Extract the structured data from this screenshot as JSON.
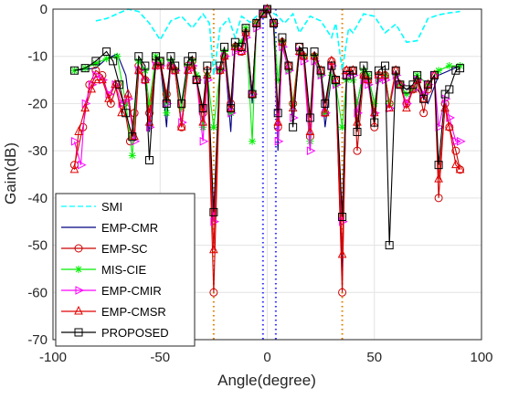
{
  "chart_data": {
    "type": "line",
    "xlabel": "Angle(degree)",
    "ylabel": "Gain(dB)",
    "xlim": [
      -100,
      100
    ],
    "ylim": [
      -70,
      0
    ],
    "xticks": [
      -100,
      -50,
      0,
      50,
      100
    ],
    "yticks": [
      0,
      -10,
      -20,
      -30,
      -40,
      -50,
      -60,
      -70
    ],
    "grid": true,
    "legend_position": "bottom-left",
    "vertical_lines": [
      -25,
      -2,
      4,
      35
    ],
    "series": [
      {
        "name": "SMI",
        "color": "#00ffff",
        "style": "dashed",
        "marker": "none",
        "x": [
          -80,
          -75,
          -70,
          -65,
          -60,
          -55,
          -50,
          -45,
          -40,
          -35,
          -30,
          -27,
          -25,
          -22,
          -18,
          -15,
          -12,
          -8,
          -5,
          0,
          5,
          8,
          12,
          15,
          20,
          25,
          30,
          32,
          35,
          38,
          40,
          45,
          50,
          55,
          60,
          65,
          70,
          75,
          80,
          85,
          90
        ],
        "y": [
          -2.5,
          -2,
          -1,
          0,
          -0.5,
          -3,
          -6.5,
          -2.5,
          -1.5,
          -4,
          -1,
          -3,
          -14,
          -4,
          -2,
          -6,
          -1.5,
          -2.8,
          -1.5,
          0,
          -1.5,
          -3,
          -1,
          -5,
          -1.5,
          -2.5,
          -6,
          -3,
          -13,
          -4,
          -5,
          -1,
          -1.5,
          -5,
          -3.2,
          -7,
          -6.7,
          -2,
          -1.2,
          -0.8,
          -0.5
        ]
      },
      {
        "name": "EMP-CMR",
        "color": "#000080",
        "style": "solid",
        "marker": "none",
        "x": [
          -90,
          -80,
          -75,
          -70,
          -66,
          -62,
          -60,
          -57,
          -55,
          -52,
          -50,
          -47,
          -45,
          -43,
          -40,
          -37,
          -35,
          -33,
          -30,
          -28,
          -25,
          -22,
          -20,
          -17,
          -15,
          -12,
          -10,
          -7,
          -5,
          -2,
          0,
          3,
          5,
          7,
          10,
          12,
          15,
          17,
          20,
          22,
          25,
          27,
          30,
          32,
          35,
          37,
          40,
          42,
          45,
          47,
          50,
          52,
          55,
          57,
          60,
          62,
          65,
          70,
          75,
          80,
          85,
          90
        ],
        "y": [
          -13,
          -12.5,
          -10.5,
          -9.5,
          -14,
          -28,
          -10.5,
          -13,
          -26,
          -10,
          -11,
          -25,
          -10.5,
          -13,
          -25,
          -12,
          -11,
          -14,
          -25,
          -14,
          -45,
          -13,
          -9,
          -26,
          -8,
          -7,
          -4,
          -20,
          -3,
          -1,
          0,
          -3,
          -30,
          -7,
          -13,
          -23,
          -9,
          -10,
          -30,
          -10,
          -14,
          -25,
          -14,
          -16,
          -57,
          -15,
          -15,
          -20,
          -13,
          -14,
          -20,
          -15,
          -14,
          -20,
          -14,
          -16,
          -17,
          -17,
          -20,
          -14,
          -13,
          -12
        ]
      },
      {
        "name": "EMP-SC",
        "color": "#cc0000",
        "style": "solid",
        "marker": "circle",
        "x": [
          -90,
          -86,
          -83,
          -80,
          -77,
          -73,
          -70,
          -67,
          -64,
          -62,
          -60,
          -57,
          -55,
          -52,
          -50,
          -47,
          -45,
          -43,
          -40,
          -37,
          -35,
          -33,
          -30,
          -28,
          -25,
          -22,
          -20,
          -17,
          -15,
          -12,
          -10,
          -7,
          -5,
          -2,
          0,
          3,
          5,
          7,
          10,
          12,
          15,
          17,
          20,
          22,
          25,
          27,
          30,
          32,
          35,
          37,
          40,
          42,
          45,
          47,
          50,
          52,
          55,
          57,
          60,
          62,
          65,
          68,
          70,
          73,
          75,
          78,
          80,
          83,
          85,
          88,
          90
        ],
        "y": [
          -33,
          -25,
          -16,
          -13,
          -14,
          -20,
          -16,
          -20,
          -28,
          -22,
          -12,
          -15,
          -22,
          -11,
          -11,
          -18,
          -12,
          -13,
          -25,
          -12,
          -11,
          -15,
          -22,
          -13,
          -60,
          -13,
          -10,
          -20,
          -8,
          -9,
          -5,
          -18,
          -3,
          -1,
          0,
          -3,
          -25,
          -7,
          -12,
          -20,
          -8,
          -10,
          -27,
          -10,
          -13,
          -22,
          -11,
          -15,
          -60,
          -13,
          -13,
          -30,
          -14,
          -15,
          -25,
          -14,
          -14,
          -20,
          -13,
          -16,
          -20,
          -17,
          -15,
          -22,
          -17,
          -14,
          -40,
          -20,
          -25,
          -30,
          -34
        ]
      },
      {
        "name": "MIS-CIE",
        "color": "#00ee00",
        "style": "solid",
        "marker": "star",
        "x": [
          -90,
          -85,
          -80,
          -75,
          -70,
          -66,
          -63,
          -60,
          -57,
          -55,
          -52,
          -50,
          -47,
          -45,
          -43,
          -40,
          -37,
          -35,
          -33,
          -30,
          -28,
          -25,
          -22,
          -20,
          -17,
          -15,
          -12,
          -10,
          -7,
          -5,
          -2,
          0,
          3,
          5,
          7,
          10,
          12,
          15,
          17,
          20,
          22,
          25,
          27,
          30,
          32,
          35,
          37,
          40,
          42,
          45,
          47,
          50,
          52,
          55,
          57,
          60,
          62,
          65,
          68,
          70,
          75,
          80,
          85,
          90
        ],
        "y": [
          -13,
          -12.5,
          -11.5,
          -10.5,
          -10,
          -20,
          -31,
          -11,
          -13,
          -20,
          -10,
          -11,
          -22,
          -11,
          -13,
          -21,
          -12,
          -11,
          -14,
          -25,
          -14,
          -25,
          -13,
          -9,
          -22,
          -8,
          -7,
          -4,
          -28,
          -3,
          -1,
          0,
          -3,
          -15,
          -7,
          -13,
          -20,
          -9,
          -10,
          -28,
          -10,
          -14,
          -22,
          -14,
          -16,
          -25,
          -15,
          -15,
          -20,
          -13,
          -14,
          -20,
          -15,
          -14,
          -20,
          -14,
          -16,
          -18,
          -17,
          -14,
          -16,
          -13,
          -12,
          -12
        ]
      },
      {
        "name": "EMP-CMIR",
        "color": "#ff00ff",
        "style": "solid",
        "marker": "triangle-right",
        "x": [
          -90,
          -87,
          -85,
          -82,
          -80,
          -77,
          -74,
          -71,
          -68,
          -65,
          -62,
          -60,
          -57,
          -55,
          -52,
          -50,
          -47,
          -45,
          -43,
          -40,
          -37,
          -35,
          -33,
          -30,
          -28,
          -25,
          -22,
          -20,
          -17,
          -15,
          -12,
          -10,
          -7,
          -5,
          -2,
          0,
          3,
          5,
          7,
          10,
          12,
          15,
          17,
          20,
          22,
          25,
          27,
          30,
          32,
          35,
          37,
          40,
          42,
          45,
          47,
          50,
          52,
          55,
          57,
          60,
          62,
          65,
          68,
          70,
          73,
          75,
          78,
          80,
          83,
          85,
          88,
          90
        ],
        "y": [
          -28,
          -33,
          -20,
          -16,
          -14,
          -15,
          -18,
          -16,
          -20,
          -19,
          -28,
          -13,
          -15,
          -25,
          -12,
          -12,
          -20,
          -12,
          -13,
          -24,
          -13,
          -12,
          -15,
          -28,
          -15,
          -45,
          -13,
          -10,
          -22,
          -9,
          -9,
          -6,
          -18,
          -4,
          -1,
          0,
          -3,
          -28,
          -8,
          -13,
          -23,
          -9,
          -11,
          -30,
          -11,
          -14,
          -22,
          -12,
          -16,
          -45,
          -14,
          -14,
          -22,
          -15,
          -16,
          -22,
          -15,
          -15,
          -21,
          -14,
          -16,
          -20,
          -17,
          -15,
          -18,
          -16,
          -14,
          -25,
          -19,
          -23,
          -28,
          -28
        ]
      },
      {
        "name": "EMP-CMSR",
        "color": "#e00000",
        "style": "solid",
        "marker": "triangle-up",
        "x": [
          -90,
          -88,
          -85,
          -82,
          -80,
          -77,
          -74,
          -71,
          -68,
          -65,
          -62,
          -60,
          -57,
          -55,
          -52,
          -50,
          -47,
          -45,
          -43,
          -40,
          -37,
          -35,
          -33,
          -30,
          -28,
          -25,
          -22,
          -20,
          -17,
          -15,
          -12,
          -10,
          -7,
          -5,
          -2,
          0,
          3,
          5,
          7,
          10,
          12,
          15,
          17,
          20,
          22,
          25,
          27,
          30,
          32,
          35,
          37,
          40,
          42,
          45,
          47,
          50,
          52,
          55,
          57,
          60,
          62,
          65,
          68,
          70,
          73,
          75,
          78,
          80,
          83,
          85,
          88,
          90
        ],
        "y": [
          -34,
          -26,
          -21,
          -17,
          -15,
          -15,
          -19,
          -16,
          -22,
          -18,
          -27,
          -13,
          -15,
          -24,
          -12,
          -12,
          -19,
          -12,
          -13,
          -25,
          -13,
          -12,
          -15,
          -24,
          -14,
          -51,
          -13,
          -10,
          -21,
          -8,
          -9,
          -5,
          -18,
          -3,
          -1,
          0,
          -3,
          -24,
          -7,
          -12,
          -21,
          -9,
          -10,
          -26,
          -10,
          -13,
          -22,
          -11,
          -15,
          -52,
          -13,
          -13,
          -24,
          -14,
          -15,
          -22,
          -14,
          -14,
          -21,
          -13,
          -16,
          -21,
          -17,
          -15,
          -19,
          -16,
          -14,
          -36,
          -21,
          -25,
          -33,
          -34
        ]
      },
      {
        "name": "PROPOSED",
        "color": "#000000",
        "style": "solid",
        "marker": "square",
        "x": [
          -90,
          -85,
          -80,
          -75,
          -72,
          -69,
          -66,
          -63,
          -60,
          -57,
          -55,
          -52,
          -50,
          -47,
          -45,
          -43,
          -40,
          -37,
          -35,
          -33,
          -30,
          -28,
          -25,
          -22,
          -20,
          -17,
          -15,
          -12,
          -10,
          -7,
          -5,
          -2,
          0,
          3,
          5,
          7,
          10,
          12,
          15,
          17,
          20,
          22,
          25,
          27,
          30,
          32,
          35,
          37,
          40,
          42,
          45,
          47,
          50,
          52,
          55,
          57,
          60,
          62,
          65,
          68,
          70,
          73,
          75,
          78,
          80,
          83,
          85,
          88,
          90
        ],
        "y": [
          -13,
          -12.5,
          -11,
          -9,
          -11,
          -16,
          -22,
          -27,
          -10,
          -12,
          -32,
          -10,
          -11,
          -20,
          -10,
          -12,
          -20,
          -11,
          -10,
          -15,
          -21,
          -12,
          -43,
          -12,
          -8,
          -21,
          -7,
          -8,
          -4,
          -18,
          -3,
          -1,
          0,
          -3,
          -22,
          -6,
          -12,
          -25,
          -8,
          -9,
          -23,
          -9,
          -13,
          -20,
          -12,
          -15,
          -44,
          -14,
          -13,
          -26,
          -12,
          -14,
          -24,
          -13,
          -12,
          -50,
          -13,
          -16,
          -17,
          -16,
          -14,
          -19,
          -16,
          -14,
          -33,
          -18,
          -17,
          -13,
          -12.5
        ]
      }
    ]
  }
}
